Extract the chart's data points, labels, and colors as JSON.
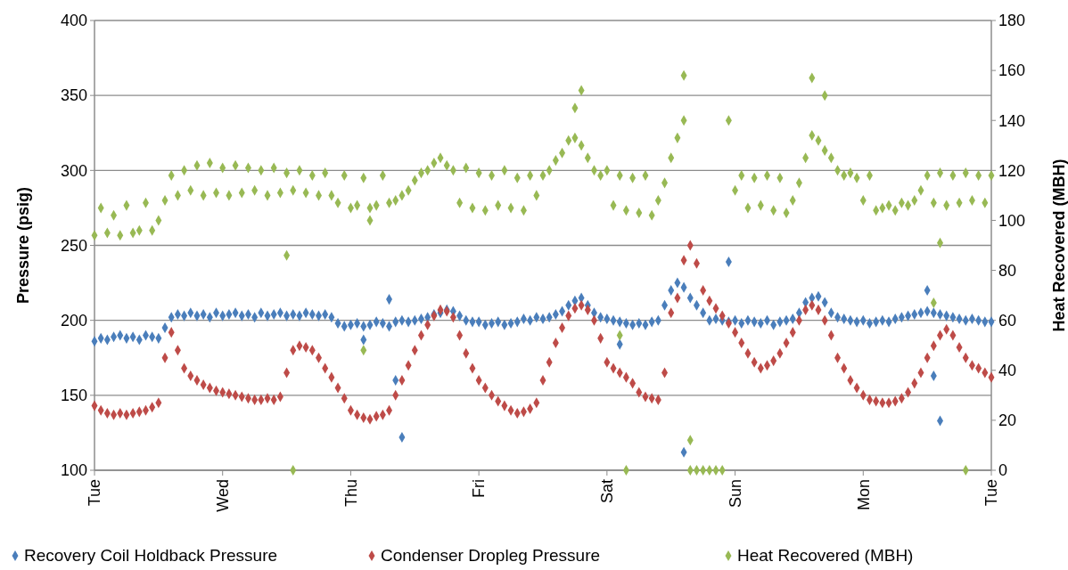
{
  "chart_data": {
    "type": "scatter",
    "ylabel": "Pressure (psig)",
    "y2label": "Heat Recovered (MBH)",
    "categories": [
      "Tue",
      null,
      null,
      null,
      null,
      null,
      null,
      null,
      null,
      null,
      null,
      null,
      null,
      null,
      null,
      null,
      null,
      null,
      null,
      null,
      "Wed",
      null,
      null,
      null,
      null,
      null,
      null,
      null,
      null,
      null,
      null,
      null,
      null,
      null,
      null,
      null,
      null,
      null,
      null,
      null,
      "Thu",
      null,
      null,
      null,
      null,
      null,
      null,
      null,
      null,
      null,
      null,
      null,
      null,
      null,
      null,
      null,
      null,
      null,
      null,
      null,
      "Fri",
      null,
      null,
      null,
      null,
      null,
      null,
      null,
      null,
      null,
      null,
      null,
      null,
      null,
      null,
      null,
      null,
      null,
      null,
      null,
      "Sat",
      null,
      null,
      null,
      null,
      null,
      null,
      null,
      null,
      null,
      null,
      null,
      null,
      null,
      null,
      null,
      null,
      null,
      null,
      null,
      "Sun",
      null,
      null,
      null,
      null,
      null,
      null,
      null,
      null,
      null,
      null,
      null,
      null,
      null,
      null,
      null,
      null,
      null,
      null,
      null,
      "Mon",
      null,
      null,
      null,
      null,
      null,
      null,
      null,
      null,
      null,
      null,
      null,
      null,
      null,
      null,
      null,
      null,
      null,
      null,
      null,
      "Tue"
    ],
    "ylim": [
      100,
      400
    ],
    "yticks": [
      100,
      150,
      200,
      250,
      300,
      350,
      400
    ],
    "y2lim": [
      0,
      180
    ],
    "y2ticks": [
      0,
      20,
      40,
      60,
      80,
      100,
      120,
      140,
      160,
      180
    ],
    "grid": "y",
    "legend": "bottom",
    "marker": "diamond",
    "series": [
      {
        "name": "Recovery Coil Holdback Pressure",
        "color": "#4a7ebb",
        "values": [
          186,
          188,
          187,
          189,
          190,
          188,
          189,
          187,
          190,
          189,
          188,
          195,
          202,
          204,
          203,
          205,
          203,
          204,
          202,
          205,
          203,
          204,
          205,
          203,
          204,
          202,
          205,
          203,
          204,
          205,
          203,
          204,
          203,
          205,
          204,
          203,
          204,
          202,
          198,
          196,
          197,
          198,
          196,
          197,
          199,
          198,
          196,
          199,
          200,
          199,
          200,
          201,
          202,
          204,
          205,
          207,
          206,
          203,
          200,
          199,
          199,
          197,
          198,
          199,
          197,
          198,
          199,
          201,
          200,
          202,
          201,
          202,
          204,
          206,
          210,
          213,
          215,
          210,
          205,
          202,
          201,
          200,
          199,
          198,
          197,
          198,
          197,
          199,
          200,
          210,
          220,
          225,
          222,
          215,
          210,
          205,
          200,
          201,
          200,
          199,
          200,
          198,
          200,
          199,
          198,
          200,
          197,
          199,
          200,
          201,
          205,
          212,
          215,
          216,
          212,
          205,
          202,
          201,
          200,
          199,
          200,
          198,
          199,
          200,
          199,
          201,
          202,
          203,
          204,
          205,
          206,
          205,
          204,
          203,
          202,
          201,
          200,
          201,
          200,
          199,
          199
        ]
      },
      {
        "name": "Condenser Dropleg Pressure",
        "color": "#be4b48",
        "values": [
          143,
          140,
          138,
          137,
          138,
          137,
          138,
          139,
          140,
          142,
          145,
          175,
          192,
          180,
          168,
          163,
          160,
          157,
          155,
          153,
          152,
          151,
          150,
          149,
          148,
          147,
          147,
          148,
          147,
          149,
          165,
          180,
          183,
          182,
          180,
          175,
          168,
          162,
          155,
          148,
          140,
          137,
          135,
          134,
          136,
          137,
          140,
          150,
          160,
          170,
          180,
          190,
          197,
          203,
          207,
          206,
          202,
          190,
          178,
          168,
          160,
          155,
          150,
          146,
          143,
          140,
          138,
          139,
          141,
          145,
          160,
          172,
          185,
          195,
          203,
          208,
          210,
          207,
          200,
          188,
          172,
          168,
          165,
          162,
          158,
          152,
          149,
          148,
          147,
          165,
          205,
          215,
          240,
          250,
          238,
          220,
          213,
          208,
          203,
          198,
          192,
          185,
          178,
          172,
          168,
          170,
          173,
          178,
          185,
          192,
          200,
          207,
          210,
          207,
          200,
          190,
          175,
          168,
          160,
          155,
          150,
          147,
          146,
          145,
          145,
          146,
          148,
          152,
          158,
          165,
          175,
          183,
          190,
          194,
          190,
          182,
          175,
          170,
          168,
          165,
          162
        ]
      },
      {
        "name": "Heat Recovered (MBH)",
        "color": "#98b954",
        "axis": "y2",
        "values": [
          94,
          105,
          95,
          102,
          94,
          106,
          95,
          96,
          107,
          96,
          100,
          108,
          118,
          110,
          120,
          112,
          122,
          110,
          123,
          111,
          121,
          110,
          122,
          111,
          121,
          112,
          120,
          110,
          121,
          111,
          119,
          112,
          120,
          111,
          118,
          110,
          119,
          110,
          107,
          118,
          105,
          106,
          117,
          105,
          106,
          118,
          107,
          108,
          110,
          112,
          116,
          119,
          120,
          123,
          125,
          122,
          120,
          107,
          121,
          105,
          119,
          104,
          118,
          106,
          120,
          105,
          117,
          104,
          118,
          110,
          118,
          120,
          124,
          127,
          132,
          133,
          130,
          125,
          120,
          118,
          120,
          106,
          118,
          104,
          117,
          103,
          118,
          102,
          108,
          115,
          125,
          133,
          140,
          0,
          0,
          0,
          0,
          0,
          0,
          140,
          112,
          118,
          105,
          117,
          106,
          118,
          104,
          117,
          103,
          108,
          115,
          125,
          134,
          132,
          128,
          125,
          120,
          118,
          119,
          117,
          108,
          118,
          104,
          105,
          106,
          104,
          107,
          106,
          108,
          112,
          118,
          107,
          119,
          106,
          118,
          107,
          119,
          108,
          118,
          107,
          118
        ]
      },
      {
        "color": "#4a7ebb",
        "values": [
          null,
          null,
          null,
          null,
          null,
          null,
          null,
          null,
          null,
          null,
          null,
          null,
          null,
          null,
          null,
          null,
          null,
          null,
          null,
          null,
          null,
          null,
          null,
          null,
          null,
          null,
          null,
          null,
          null,
          null,
          null,
          null,
          null,
          null,
          null,
          null,
          null,
          null,
          null,
          null,
          null,
          null,
          187,
          null,
          null,
          null,
          214,
          160,
          122,
          null,
          null,
          null,
          null,
          null,
          null,
          null,
          null,
          null,
          null,
          null,
          null,
          null,
          null,
          null,
          null,
          null,
          null,
          null,
          null,
          null,
          null,
          null,
          null,
          null,
          null,
          null,
          null,
          null,
          null,
          null,
          null,
          null,
          184,
          null,
          null,
          null,
          null,
          null,
          null,
          null,
          null,
          null,
          112,
          null,
          null,
          null,
          null,
          null,
          null,
          239,
          null,
          null,
          null,
          null,
          null,
          null,
          null,
          null,
          null,
          null,
          null,
          null,
          null,
          null,
          null,
          null,
          null,
          null,
          null,
          null,
          null,
          null,
          null,
          null,
          null,
          null,
          null,
          null,
          null,
          null,
          220,
          163,
          133,
          null,
          null,
          null,
          null,
          null,
          null,
          null,
          null
        ]
      },
      {
        "color": "#98b954",
        "axis": "y2",
        "values": [
          null,
          null,
          null,
          null,
          null,
          null,
          null,
          null,
          null,
          null,
          null,
          null,
          null,
          null,
          null,
          null,
          null,
          null,
          null,
          null,
          null,
          null,
          null,
          null,
          null,
          null,
          null,
          null,
          null,
          null,
          86,
          0,
          null,
          null,
          null,
          null,
          null,
          null,
          null,
          null,
          null,
          null,
          48,
          100,
          null,
          null,
          null,
          null,
          null,
          null,
          null,
          null,
          null,
          null,
          null,
          null,
          null,
          null,
          null,
          null,
          null,
          null,
          null,
          null,
          null,
          null,
          null,
          null,
          null,
          null,
          null,
          null,
          null,
          null,
          null,
          145,
          152,
          null,
          null,
          null,
          null,
          null,
          54,
          0,
          null,
          null,
          null,
          null,
          null,
          null,
          null,
          null,
          158,
          12,
          null,
          null,
          null,
          null,
          null,
          null,
          null,
          null,
          null,
          null,
          null,
          null,
          null,
          null,
          null,
          null,
          null,
          null,
          157,
          null,
          150,
          null,
          null,
          null,
          null,
          null,
          null,
          null,
          null,
          null,
          null,
          null,
          null,
          null,
          null,
          null,
          null,
          67,
          91,
          null,
          null,
          null,
          0,
          null,
          null,
          null,
          null
        ]
      }
    ]
  }
}
